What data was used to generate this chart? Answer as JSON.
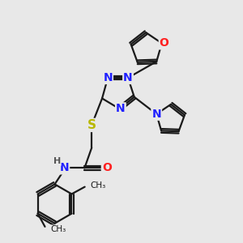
{
  "bg_color": "#e8e8e8",
  "bond_color": "#1a1a1a",
  "bond_width": 1.6,
  "atom_colors": {
    "N": "#2020ff",
    "O": "#ff2020",
    "S": "#b8b800",
    "H": "#555555",
    "C": "#1a1a1a"
  },
  "font_size_atom": 10,
  "font_size_H": 8,
  "font_size_small": 8.5
}
